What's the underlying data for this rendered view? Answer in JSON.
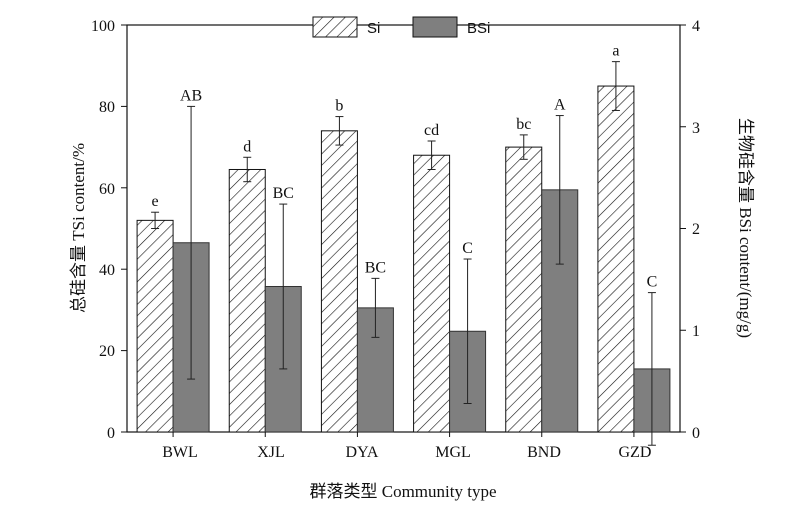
{
  "chart_data": {
    "type": "bar",
    "categories": [
      "BWL",
      "XJL",
      "DYA",
      "MGL",
      "BND",
      "GZD"
    ],
    "xlabel": "群落类型  Community type",
    "ylabel_left": "总硅含量 TSi content/%",
    "ylabel_right": "生物硅含量 BSi content/(mg/g)",
    "ylim_left": [
      0,
      100
    ],
    "ylim_right": [
      0,
      4
    ],
    "yticks_left": [
      "0",
      "20",
      "40",
      "60",
      "80",
      "100"
    ],
    "yticks_right": [
      "0",
      "1",
      "2",
      "3",
      "4"
    ],
    "grid": false,
    "legend_position": "top-center",
    "series": [
      {
        "name": "Si",
        "axis": "left",
        "style": "hatched",
        "values": [
          52,
          64.5,
          74,
          68,
          70,
          85
        ],
        "errors": [
          2,
          3,
          3.5,
          3.5,
          3,
          6
        ],
        "letters": [
          "e",
          "d",
          "b",
          "cd",
          "bc",
          "a"
        ]
      },
      {
        "name": "BSi",
        "axis": "right",
        "style": "solid",
        "color": "#7f7f7f",
        "values": [
          1.86,
          1.43,
          1.22,
          0.99,
          2.38,
          0.62
        ],
        "errors": [
          1.34,
          0.81,
          0.29,
          0.71,
          0.73,
          0.75
        ],
        "letters": [
          "AB",
          "BC",
          "BC",
          "C",
          "A",
          "C"
        ]
      }
    ]
  }
}
